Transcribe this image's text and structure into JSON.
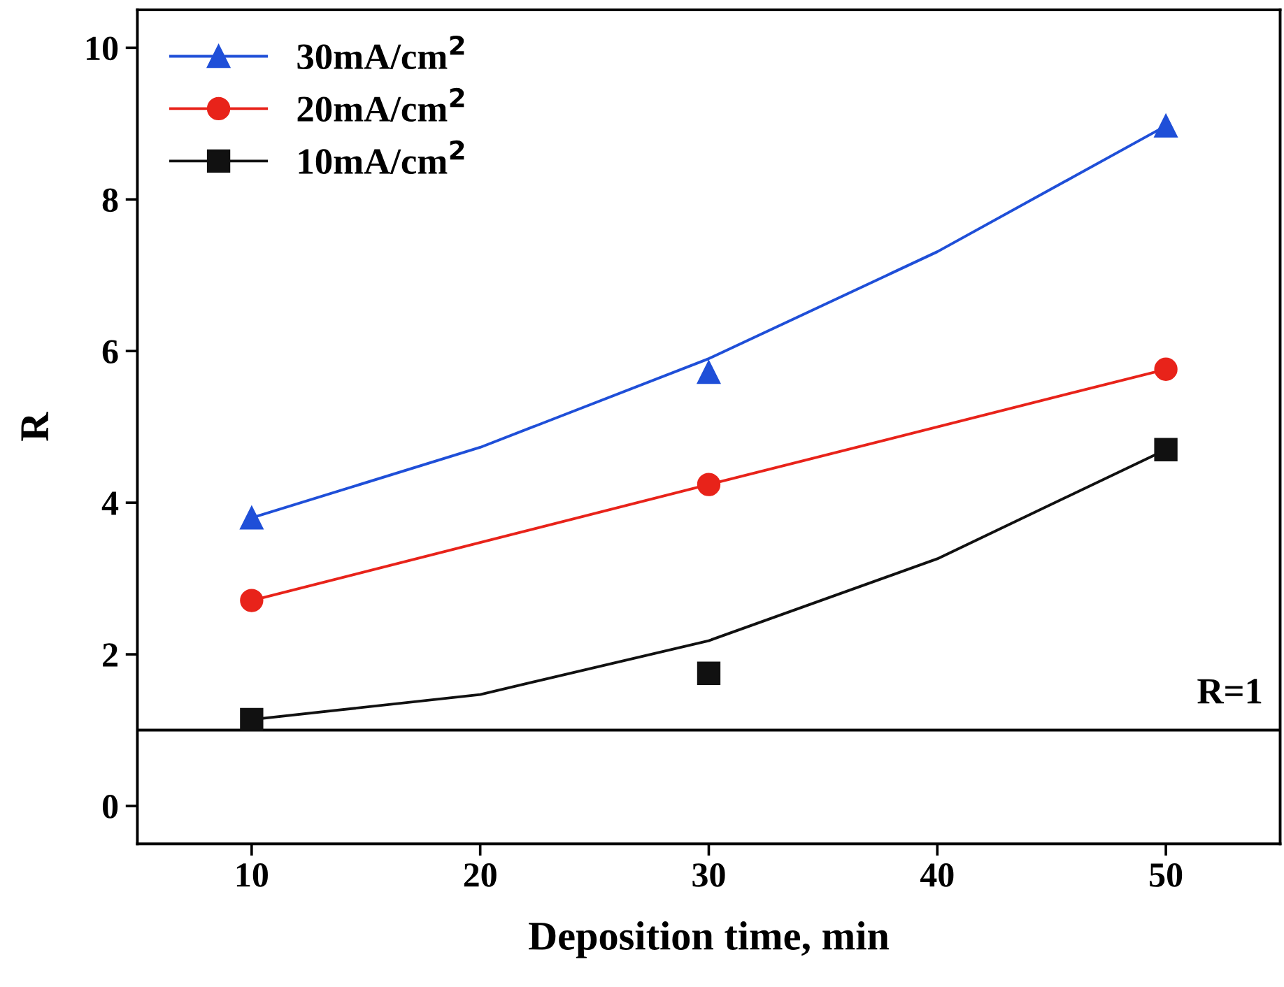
{
  "chart_data": {
    "type": "scatter",
    "xlabel": "Deposition time, min",
    "ylabel": "R",
    "xlim": [
      5,
      55
    ],
    "ylim": [
      -0.5,
      10.5
    ],
    "xticks": [
      10,
      20,
      30,
      40,
      50
    ],
    "yticks": [
      0,
      2,
      4,
      6,
      8,
      10
    ],
    "grid": false,
    "legend": "top left",
    "series": [
      {
        "name": "30mA/cm$^{2}$",
        "color": "#1f4fd8",
        "marker": "triangle",
        "x": [
          10,
          30,
          50
        ],
        "values": [
          3.8,
          5.72,
          8.97
        ]
      },
      {
        "name": "20mA/cm$^{2}$",
        "color": "#e8231a",
        "marker": "circle",
        "x": [
          10,
          30,
          50
        ],
        "values": [
          2.71,
          4.24,
          5.76
        ]
      },
      {
        "name": "10mA/cm$^{2}$",
        "color": "#111111",
        "marker": "square",
        "x": [
          10,
          30,
          50
        ],
        "values": [
          1.14,
          1.75,
          4.7
        ]
      },
      {
        "type": "line",
        "color": "#1f4fd8",
        "marker": "none",
        "x": [
          10,
          20,
          30,
          40,
          50
        ],
        "values": [
          3.8,
          4.73,
          5.9,
          7.31,
          8.97
        ]
      },
      {
        "type": "line",
        "color": "#e8231a",
        "marker": "none",
        "x": [
          10,
          30,
          50
        ],
        "values": [
          2.71,
          4.24,
          5.76
        ]
      },
      {
        "type": "line",
        "color": "#111111",
        "marker": "none",
        "x": [
          10,
          20,
          30,
          40,
          50
        ],
        "values": [
          1.14,
          1.47,
          2.18,
          3.26,
          4.7
        ]
      }
    ],
    "ref_lines": [
      {
        "axis": "y",
        "value": 1,
        "label": "R=1",
        "color": "#000000"
      }
    ]
  }
}
